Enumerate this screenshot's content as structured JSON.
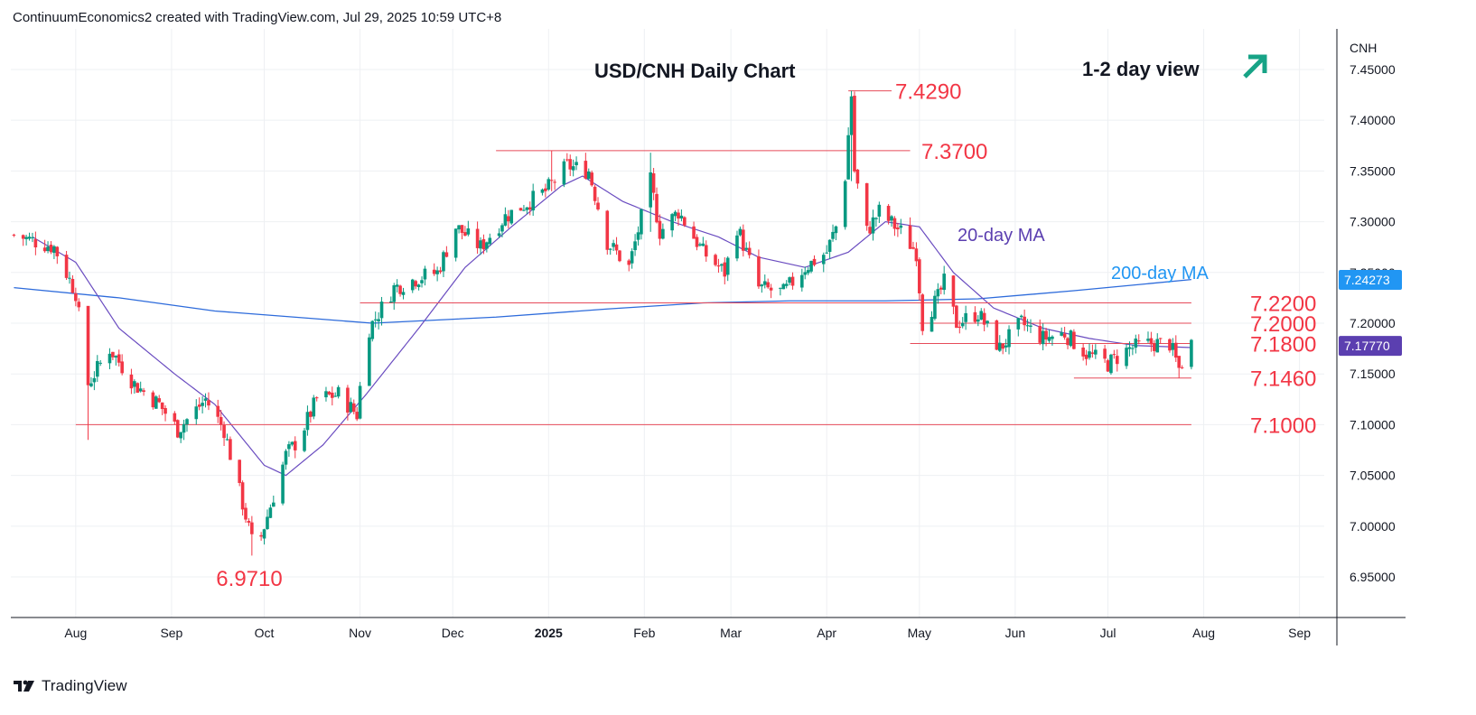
{
  "header": {
    "attribution": "ContinuumEconomics2 created with TradingView.com, Jul 29, 2025 10:59 UTC+8"
  },
  "footer": {
    "brand": "TradingView"
  },
  "chart_data": {
    "type": "candlestick",
    "title": "USD/CNH Daily Chart",
    "view_text": "1-2 day view",
    "view_arrow": "up-right-arrow",
    "symbol": "CNH",
    "ylim": [
      6.91,
      7.49
    ],
    "grid": true,
    "y_ticks": [
      "7.45000",
      "7.40000",
      "7.35000",
      "7.30000",
      "7.25000",
      "7.20000",
      "7.15000",
      "7.10000",
      "7.05000",
      "7.00000",
      "6.95000"
    ],
    "x_ticks": [
      {
        "label": "Aug",
        "date": "2024-08-01"
      },
      {
        "label": "Sep",
        "date": "2024-09-01"
      },
      {
        "label": "Oct",
        "date": "2024-10-01"
      },
      {
        "label": "Nov",
        "date": "2024-11-01"
      },
      {
        "label": "Dec",
        "date": "2024-12-01"
      },
      {
        "label": "2025",
        "date": "2025-01-01",
        "bold": true
      },
      {
        "label": "Feb",
        "date": "2025-02-01"
      },
      {
        "label": "Mar",
        "date": "2025-03-01"
      },
      {
        "label": "Apr",
        "date": "2025-04-01"
      },
      {
        "label": "May",
        "date": "2025-05-01"
      },
      {
        "label": "Jun",
        "date": "2025-06-01"
      },
      {
        "label": "Jul",
        "date": "2025-07-01"
      },
      {
        "label": "Aug",
        "date": "2025-08-01"
      },
      {
        "label": "Sep",
        "date": "2025-09-01"
      }
    ],
    "levels": [
      {
        "label": "7.4290",
        "value": 7.429,
        "from": "2025-04-08",
        "to": "2025-04-22"
      },
      {
        "label": "7.3700",
        "value": 7.37,
        "from": "2024-12-15",
        "to": "2025-04-28"
      },
      {
        "label": "7.2200",
        "value": 7.22,
        "from": "2024-11-01",
        "to": "2025-07-28"
      },
      {
        "label": "7.2000",
        "value": 7.2,
        "from": "2025-05-01",
        "to": "2025-07-28"
      },
      {
        "label": "7.1800",
        "value": 7.18,
        "from": "2025-04-28",
        "to": "2025-07-28"
      },
      {
        "label": "7.1460",
        "value": 7.146,
        "from": "2025-06-20",
        "to": "2025-07-28"
      },
      {
        "label": "7.1000",
        "value": 7.1,
        "from": "2024-08-01",
        "to": "2025-07-28"
      },
      {
        "label": "6.9710",
        "value": 6.971,
        "from": "2024-09-28",
        "to": "2024-09-28",
        "below": true
      }
    ],
    "annotations": [
      {
        "text": "20-day MA",
        "color": "#5b3fb0"
      },
      {
        "text": "200-day MA",
        "color": "#2196f3"
      }
    ],
    "price_badges": [
      {
        "text": "7.24273",
        "value": 7.24273,
        "color": "#2196f3"
      },
      {
        "text": "7.17770",
        "value": 7.1777,
        "color": "#5b3fb0"
      }
    ],
    "colors": {
      "up": "#089981",
      "down": "#f23645",
      "ma20": "#6a4cc0",
      "ma200": "#2d6bdb",
      "level": "#e64b5a",
      "label": "#f23645"
    },
    "series": [
      {
        "name": "USD/CNH",
        "anchors": [
          {
            "date": "2024-07-12",
            "close": 7.287
          },
          {
            "date": "2024-07-25",
            "close": 7.275
          },
          {
            "date": "2024-08-01",
            "close": 7.23
          },
          {
            "date": "2024-08-05",
            "close": 7.14
          },
          {
            "date": "2024-08-12",
            "close": 7.175
          },
          {
            "date": "2024-08-20",
            "close": 7.14
          },
          {
            "date": "2024-08-28",
            "close": 7.12
          },
          {
            "date": "2024-09-03",
            "close": 7.095
          },
          {
            "date": "2024-09-12",
            "close": 7.125
          },
          {
            "date": "2024-09-18",
            "close": 7.095
          },
          {
            "date": "2024-09-25",
            "close": 7.01
          },
          {
            "date": "2024-09-27",
            "close": 6.985
          },
          {
            "date": "2024-09-30",
            "close": 6.99
          },
          {
            "date": "2024-10-08",
            "close": 7.07
          },
          {
            "date": "2024-10-12",
            "close": 7.085
          },
          {
            "date": "2024-10-18",
            "close": 7.125
          },
          {
            "date": "2024-10-25",
            "close": 7.13
          },
          {
            "date": "2024-10-31",
            "close": 7.11
          },
          {
            "date": "2024-11-03",
            "close": 7.19
          },
          {
            "date": "2024-11-12",
            "close": 7.235
          },
          {
            "date": "2024-11-20",
            "close": 7.245
          },
          {
            "date": "2024-11-26",
            "close": 7.25
          },
          {
            "date": "2024-12-02",
            "close": 7.295
          },
          {
            "date": "2024-12-10",
            "close": 7.275
          },
          {
            "date": "2024-12-18",
            "close": 7.305
          },
          {
            "date": "2024-12-31",
            "close": 7.33
          },
          {
            "date": "2025-01-07",
            "close": 7.355
          },
          {
            "date": "2025-01-14",
            "close": 7.35
          },
          {
            "date": "2025-01-20",
            "close": 7.28
          },
          {
            "date": "2025-01-27",
            "close": 7.255
          },
          {
            "date": "2025-02-03",
            "close": 7.34
          },
          {
            "date": "2025-02-06",
            "close": 7.29
          },
          {
            "date": "2025-02-12",
            "close": 7.31
          },
          {
            "date": "2025-02-20",
            "close": 7.27
          },
          {
            "date": "2025-02-27",
            "close": 7.25
          },
          {
            "date": "2025-03-03",
            "close": 7.295
          },
          {
            "date": "2025-03-10",
            "close": 7.235
          },
          {
            "date": "2025-03-18",
            "close": 7.23
          },
          {
            "date": "2025-03-25",
            "close": 7.255
          },
          {
            "date": "2025-04-01",
            "close": 7.27
          },
          {
            "date": "2025-04-04",
            "close": 7.295
          },
          {
            "date": "2025-04-07",
            "close": 7.345
          },
          {
            "date": "2025-04-09",
            "close": 7.425
          },
          {
            "date": "2025-04-10",
            "close": 7.35
          },
          {
            "date": "2025-04-14",
            "close": 7.29
          },
          {
            "date": "2025-04-18",
            "close": 7.31
          },
          {
            "date": "2025-04-25",
            "close": 7.29
          },
          {
            "date": "2025-04-30",
            "close": 7.27
          },
          {
            "date": "2025-05-02",
            "close": 7.2
          },
          {
            "date": "2025-05-07",
            "close": 7.225
          },
          {
            "date": "2025-05-09",
            "close": 7.24
          },
          {
            "date": "2025-05-13",
            "close": 7.2
          },
          {
            "date": "2025-05-20",
            "close": 7.21
          },
          {
            "date": "2025-05-27",
            "close": 7.175
          },
          {
            "date": "2025-06-03",
            "close": 7.2
          },
          {
            "date": "2025-06-10",
            "close": 7.185
          },
          {
            "date": "2025-06-17",
            "close": 7.19
          },
          {
            "date": "2025-06-24",
            "close": 7.17
          },
          {
            "date": "2025-07-01",
            "close": 7.16
          },
          {
            "date": "2025-07-08",
            "close": 7.175
          },
          {
            "date": "2025-07-15",
            "close": 7.18
          },
          {
            "date": "2025-07-21",
            "close": 7.18
          },
          {
            "date": "2025-07-24",
            "close": 7.155
          },
          {
            "date": "2025-07-28",
            "close": 7.18
          }
        ]
      },
      {
        "name": "20-day MA",
        "anchors": [
          {
            "date": "2024-07-18",
            "close": 7.285
          },
          {
            "date": "2024-08-01",
            "close": 7.26
          },
          {
            "date": "2024-08-15",
            "close": 7.195
          },
          {
            "date": "2024-09-02",
            "close": 7.15
          },
          {
            "date": "2024-09-15",
            "close": 7.12
          },
          {
            "date": "2024-10-01",
            "close": 7.06
          },
          {
            "date": "2024-10-08",
            "close": 7.05
          },
          {
            "date": "2024-10-20",
            "close": 7.08
          },
          {
            "date": "2024-11-03",
            "close": 7.13
          },
          {
            "date": "2024-11-20",
            "close": 7.195
          },
          {
            "date": "2024-12-05",
            "close": 7.255
          },
          {
            "date": "2024-12-20",
            "close": 7.295
          },
          {
            "date": "2025-01-05",
            "close": 7.335
          },
          {
            "date": "2025-01-12",
            "close": 7.345
          },
          {
            "date": "2025-01-25",
            "close": 7.32
          },
          {
            "date": "2025-02-10",
            "close": 7.3
          },
          {
            "date": "2025-02-25",
            "close": 7.285
          },
          {
            "date": "2025-03-10",
            "close": 7.265
          },
          {
            "date": "2025-03-25",
            "close": 7.255
          },
          {
            "date": "2025-04-08",
            "close": 7.27
          },
          {
            "date": "2025-04-20",
            "close": 7.3
          },
          {
            "date": "2025-05-01",
            "close": 7.295
          },
          {
            "date": "2025-05-12",
            "close": 7.25
          },
          {
            "date": "2025-05-25",
            "close": 7.215
          },
          {
            "date": "2025-06-10",
            "close": 7.195
          },
          {
            "date": "2025-06-25",
            "close": 7.185
          },
          {
            "date": "2025-07-10",
            "close": 7.178
          },
          {
            "date": "2025-07-28",
            "close": 7.176
          }
        ]
      },
      {
        "name": "200-day MA",
        "anchors": [
          {
            "date": "2024-07-12",
            "close": 7.235
          },
          {
            "date": "2024-08-15",
            "close": 7.225
          },
          {
            "date": "2024-09-15",
            "close": 7.212
          },
          {
            "date": "2024-10-15",
            "close": 7.205
          },
          {
            "date": "2024-11-05",
            "close": 7.2
          },
          {
            "date": "2024-12-15",
            "close": 7.206
          },
          {
            "date": "2025-01-20",
            "close": 7.214
          },
          {
            "date": "2025-02-20",
            "close": 7.22
          },
          {
            "date": "2025-03-20",
            "close": 7.222
          },
          {
            "date": "2025-04-20",
            "close": 7.222
          },
          {
            "date": "2025-05-20",
            "close": 7.224
          },
          {
            "date": "2025-06-20",
            "close": 7.232
          },
          {
            "date": "2025-07-28",
            "close": 7.243
          }
        ]
      }
    ]
  }
}
